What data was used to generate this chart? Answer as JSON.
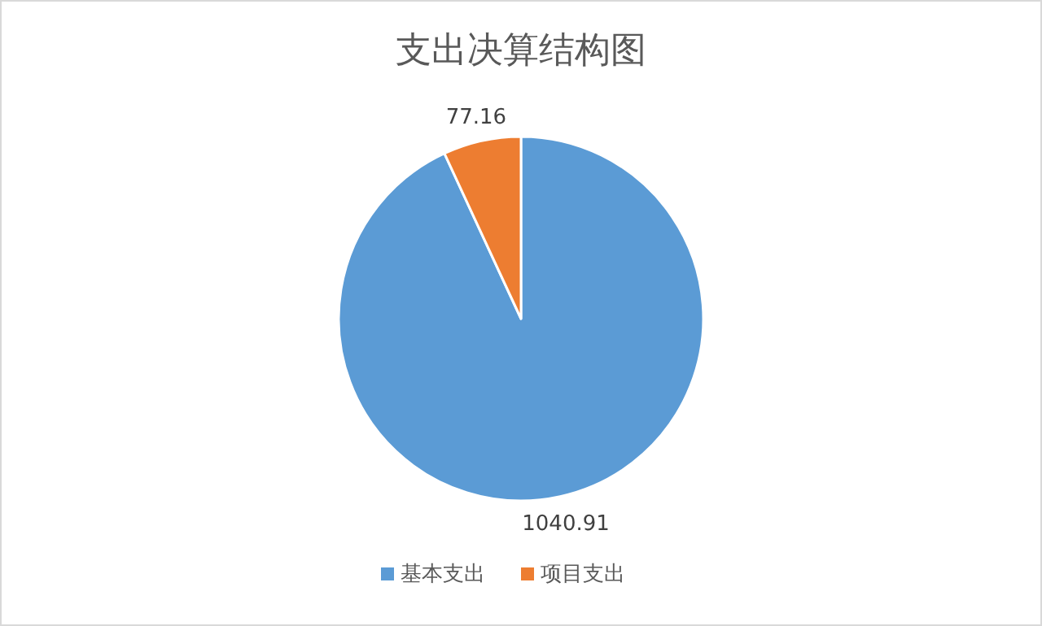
{
  "chart_data": {
    "type": "pie",
    "title": "支出决算结构图",
    "categories": [
      "基本支出",
      "项目支出"
    ],
    "values": [
      1040.91,
      77.16
    ],
    "colors": [
      "#5b9bd5",
      "#ed7d31"
    ],
    "data_labels": true,
    "legend": "bottom"
  }
}
